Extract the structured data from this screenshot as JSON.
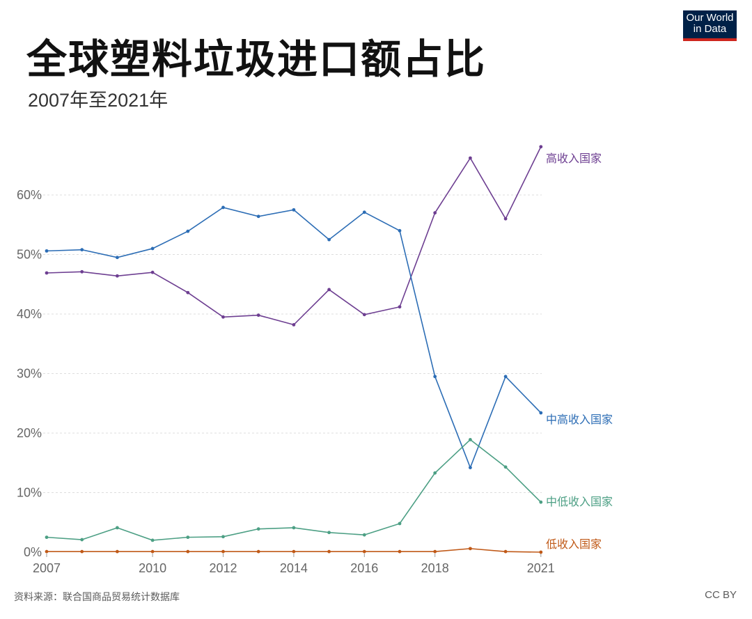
{
  "title": "全球塑料垃圾进口额占比",
  "subtitle": "2007年至2021年",
  "logo": {
    "line1": "Our World",
    "line2": "in Data",
    "bg": "#002147",
    "accent": "#ce261e"
  },
  "source": "资料来源：联合国商品贸易统计数据库",
  "license": "CC BY",
  "chart_data": {
    "type": "line",
    "x": [
      2007,
      2008,
      2009,
      2010,
      2011,
      2012,
      2013,
      2014,
      2015,
      2016,
      2017,
      2018,
      2019,
      2020,
      2021
    ],
    "xticks": [
      "2007",
      "2010",
      "2012",
      "2014",
      "2016",
      "2018",
      "2021"
    ],
    "yticks": [
      "0%",
      "10%",
      "20%",
      "30%",
      "40%",
      "50%",
      "60%"
    ],
    "ylim": [
      0,
      68
    ],
    "grid": true,
    "series": [
      {
        "name": "高收入国家",
        "color": "#6d3e91",
        "values": [
          46.9,
          47.1,
          46.4,
          47.0,
          43.6,
          39.5,
          39.8,
          38.2,
          44.1,
          39.9,
          41.2,
          57.0,
          66.2,
          56.0,
          68.1
        ]
      },
      {
        "name": "中高收入国家",
        "color": "#2c6db5",
        "values": [
          50.6,
          50.8,
          49.5,
          51.0,
          53.9,
          57.9,
          56.4,
          57.5,
          52.5,
          57.1,
          54.0,
          29.5,
          14.2,
          29.5,
          23.4
        ]
      },
      {
        "name": "中低收入国家",
        "color": "#4c9f84",
        "values": [
          2.5,
          2.1,
          4.1,
          2.0,
          2.5,
          2.6,
          3.9,
          4.1,
          3.3,
          2.9,
          4.8,
          13.3,
          18.9,
          14.3,
          8.4
        ]
      },
      {
        "name": "低收入国家",
        "color": "#c05917",
        "values": [
          0.1,
          0.1,
          0.1,
          0.1,
          0.1,
          0.1,
          0.1,
          0.1,
          0.1,
          0.1,
          0.1,
          0.1,
          0.6,
          0.1,
          0.0
        ]
      }
    ]
  }
}
